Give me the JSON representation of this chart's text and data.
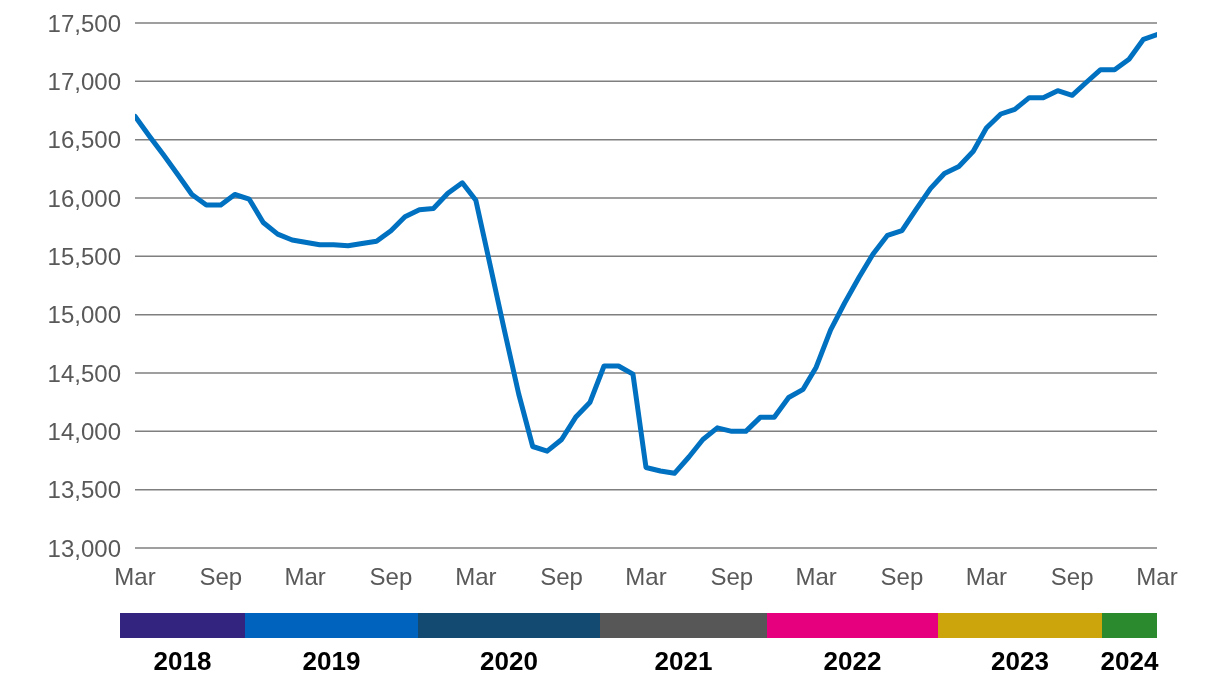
{
  "chart_data": {
    "type": "line",
    "x": [
      "2018-03",
      "2018-04",
      "2018-05",
      "2018-06",
      "2018-07",
      "2018-08",
      "2018-09",
      "2018-10",
      "2018-11",
      "2018-12",
      "2019-01",
      "2019-02",
      "2019-03",
      "2019-04",
      "2019-05",
      "2019-06",
      "2019-07",
      "2019-08",
      "2019-09",
      "2019-10",
      "2019-11",
      "2019-12",
      "2020-01",
      "2020-02",
      "2020-03",
      "2020-04",
      "2020-05",
      "2020-06",
      "2020-07",
      "2020-08",
      "2020-09",
      "2020-10",
      "2020-11",
      "2020-12",
      "2021-01",
      "2021-02",
      "2021-03",
      "2021-04",
      "2021-05",
      "2021-06",
      "2021-07",
      "2021-08",
      "2021-09",
      "2021-10",
      "2021-11",
      "2021-12",
      "2022-01",
      "2022-02",
      "2022-03",
      "2022-04",
      "2022-05",
      "2022-06",
      "2022-07",
      "2022-08",
      "2022-09",
      "2022-10",
      "2022-11",
      "2022-12",
      "2023-01",
      "2023-02",
      "2023-03",
      "2023-04",
      "2023-05",
      "2023-06",
      "2023-07",
      "2023-08",
      "2023-09",
      "2023-10",
      "2023-11",
      "2023-12",
      "2024-01",
      "2024-02",
      "2024-03"
    ],
    "series": [
      {
        "color": "#0070c0",
        "values": [
          16700,
          16530,
          16370,
          16200,
          16030,
          15940,
          15940,
          16030,
          15990,
          15790,
          15690,
          15640,
          15620,
          15600,
          15600,
          15590,
          15610,
          15630,
          15720,
          15840,
          15900,
          15910,
          16040,
          16130,
          15980,
          15420,
          14870,
          14320,
          13870,
          13830,
          13930,
          14120,
          14250,
          14560,
          14560,
          14490,
          13690,
          13660,
          13640,
          13780,
          13930,
          14030,
          14000,
          14000,
          14120,
          14120,
          14290,
          14360,
          14550,
          14870,
          15100,
          15320,
          15520,
          15680,
          15720,
          15900,
          16080,
          16210,
          16270,
          16400,
          16600,
          16720,
          16760,
          16860,
          16860,
          16920,
          16880,
          16990,
          17100,
          17100,
          17190,
          17360,
          17400
        ]
      }
    ],
    "xlim": [
      "2018-03",
      "2024-03"
    ],
    "xticks": [
      {
        "value": "2018-03",
        "label": "Mar"
      },
      {
        "value": "2018-09",
        "label": "Sep"
      },
      {
        "value": "2019-03",
        "label": "Mar"
      },
      {
        "value": "2019-09",
        "label": "Sep"
      },
      {
        "value": "2020-03",
        "label": "Mar"
      },
      {
        "value": "2020-09",
        "label": "Sep"
      },
      {
        "value": "2021-03",
        "label": "Mar"
      },
      {
        "value": "2021-09",
        "label": "Sep"
      },
      {
        "value": "2022-03",
        "label": "Mar"
      },
      {
        "value": "2022-09",
        "label": "Sep"
      },
      {
        "value": "2023-03",
        "label": "Mar"
      },
      {
        "value": "2023-09",
        "label": "Sep"
      },
      {
        "value": "2024-03",
        "label": "Mar"
      }
    ],
    "ylim": [
      13000,
      17500
    ],
    "yticks": [
      {
        "value": 13000,
        "label": "13,000"
      },
      {
        "value": 13500,
        "label": "13,500"
      },
      {
        "value": 14000,
        "label": "14,000"
      },
      {
        "value": 14500,
        "label": "14,500"
      },
      {
        "value": 15000,
        "label": "15,000"
      },
      {
        "value": 15500,
        "label": "15,500"
      },
      {
        "value": 16000,
        "label": "16,000"
      },
      {
        "value": 16500,
        "label": "16,500"
      },
      {
        "value": 17000,
        "label": "17,000"
      },
      {
        "value": 17500,
        "label": "17,500"
      }
    ],
    "grid": "y",
    "marker": "none",
    "line_style": "solid",
    "legend": false,
    "annotations": [
      "2018",
      "2019",
      "2020",
      "2021",
      "2022",
      "2023",
      "2024"
    ]
  }
}
